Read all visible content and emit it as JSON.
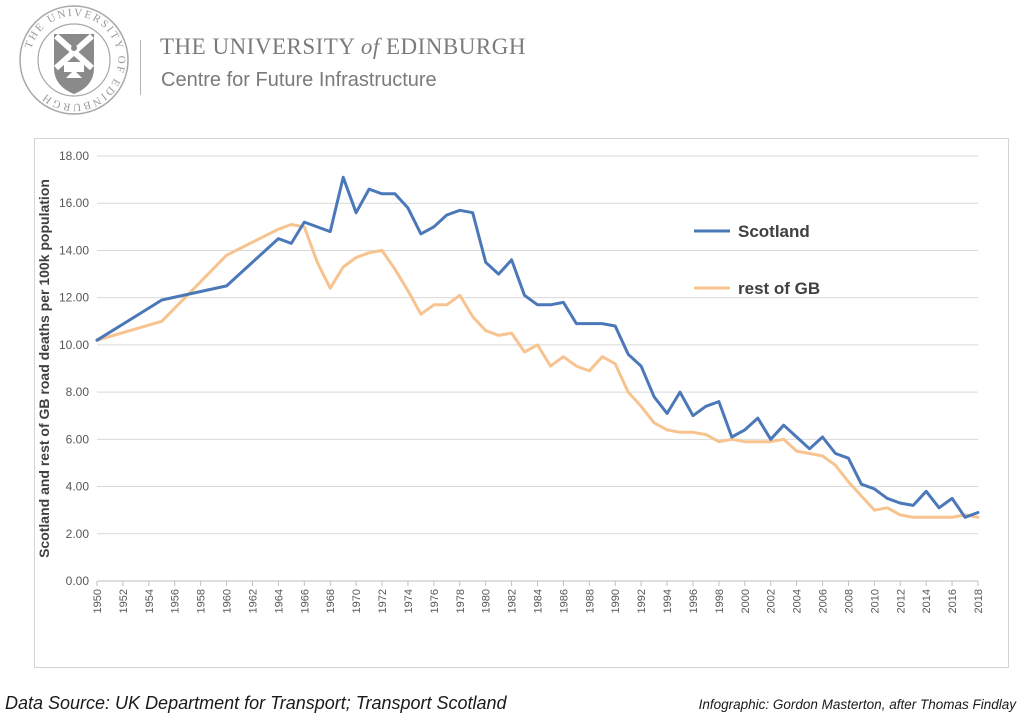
{
  "header": {
    "university_prefix": "THE UNIVERSITY",
    "university_of": "of",
    "university_suffix": "EDINBURGH",
    "subtitle": "Centre for Future Infrastructure",
    "seal_text": "THE UNIVERSITY OF EDINBURGH"
  },
  "footer": {
    "source": "Data Source: UK Department for Transport; Transport Scotland",
    "credit": "Infographic: Gordon Masterton, after Thomas Findlay"
  },
  "colors": {
    "scotland": "#4a78b8",
    "rest_of_gb": "#f7c38f",
    "grid": "#d9d9d9",
    "axis_text": "#595959",
    "header_grey": "#7b7b7b"
  },
  "chart_data": {
    "type": "line",
    "title": "",
    "ylabel": "Scotland and rest of GB road deaths per 100k population",
    "xlabel": "",
    "ylim": [
      0,
      18
    ],
    "y_ticks": [
      "0.00",
      "2.00",
      "4.00",
      "6.00",
      "8.00",
      "10.00",
      "12.00",
      "14.00",
      "16.00",
      "18.00"
    ],
    "x_ticks": [
      "1950",
      "1952",
      "1954",
      "1956",
      "1958",
      "1960",
      "1962",
      "1964",
      "1966",
      "1968",
      "1970",
      "1972",
      "1974",
      "1976",
      "1978",
      "1980",
      "1982",
      "1984",
      "1986",
      "1988",
      "1990",
      "1992",
      "1994",
      "1996",
      "1998",
      "2000",
      "2002",
      "2004",
      "2006",
      "2008",
      "2010",
      "2012",
      "2014",
      "2016",
      "2018"
    ],
    "grid": "horizontal",
    "legend_placement": "right-middle",
    "series": [
      {
        "name": "Scotland",
        "x": [
          1950,
          1955,
          1960,
          1964,
          1965,
          1966,
          1968,
          1969,
          1970,
          1971,
          1972,
          1973,
          1974,
          1975,
          1976,
          1977,
          1978,
          1979,
          1980,
          1981,
          1982,
          1983,
          1984,
          1985,
          1986,
          1987,
          1988,
          1989,
          1990,
          1991,
          1992,
          1993,
          1994,
          1995,
          1996,
          1997,
          1998,
          1999,
          2000,
          2001,
          2002,
          2003,
          2004,
          2005,
          2006,
          2007,
          2008,
          2009,
          2010,
          2011,
          2012,
          2013,
          2014,
          2015,
          2016,
          2017,
          2018
        ],
        "values": [
          10.2,
          11.9,
          12.5,
          14.5,
          14.3,
          15.2,
          14.8,
          17.1,
          15.6,
          16.6,
          16.4,
          16.4,
          15.8,
          14.7,
          15.0,
          15.5,
          15.7,
          15.6,
          13.5,
          13.0,
          13.6,
          12.1,
          11.7,
          11.7,
          11.8,
          10.9,
          10.9,
          10.9,
          10.8,
          9.6,
          9.1,
          7.8,
          7.1,
          8.0,
          7.0,
          7.4,
          7.6,
          6.1,
          6.4,
          6.9,
          6.0,
          6.6,
          6.1,
          5.6,
          6.1,
          5.4,
          5.2,
          4.1,
          3.9,
          3.5,
          3.3,
          3.2,
          3.8,
          3.1,
          3.5,
          2.7,
          2.9
        ]
      },
      {
        "name": "rest of GB",
        "x": [
          1950,
          1955,
          1960,
          1964,
          1965,
          1966,
          1967,
          1968,
          1969,
          1970,
          1971,
          1972,
          1973,
          1974,
          1975,
          1976,
          1977,
          1978,
          1979,
          1980,
          1981,
          1982,
          1983,
          1984,
          1985,
          1986,
          1987,
          1988,
          1989,
          1990,
          1991,
          1992,
          1993,
          1994,
          1995,
          1996,
          1997,
          1998,
          1999,
          2000,
          2001,
          2002,
          2003,
          2004,
          2005,
          2006,
          2007,
          2008,
          2009,
          2010,
          2011,
          2012,
          2013,
          2014,
          2015,
          2016,
          2017,
          2018
        ],
        "values": [
          10.2,
          11.0,
          13.8,
          14.9,
          15.1,
          15.0,
          13.5,
          12.4,
          13.3,
          13.7,
          13.9,
          14.0,
          13.2,
          12.3,
          11.3,
          11.7,
          11.7,
          12.1,
          11.2,
          10.6,
          10.4,
          10.5,
          9.7,
          10.0,
          9.1,
          9.5,
          9.1,
          8.9,
          9.5,
          9.2,
          8.0,
          7.4,
          6.7,
          6.4,
          6.3,
          6.3,
          6.2,
          5.9,
          6.0,
          5.9,
          5.9,
          5.9,
          6.0,
          5.5,
          5.4,
          5.3,
          4.9,
          4.2,
          3.6,
          3.0,
          3.1,
          2.8,
          2.7,
          2.7,
          2.7,
          2.7,
          2.8,
          2.7
        ]
      }
    ]
  }
}
